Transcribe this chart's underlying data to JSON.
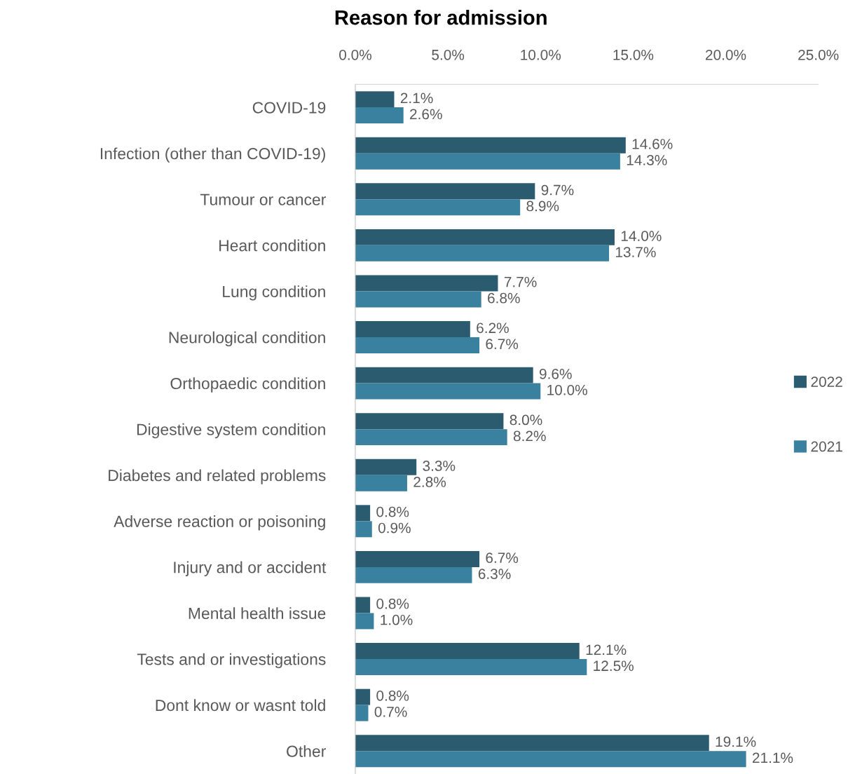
{
  "chart_data": {
    "type": "bar",
    "orientation": "horizontal",
    "title": "Reason for admission",
    "categories": [
      "COVID-19",
      "Infection (other than COVID-19)",
      "Tumour or cancer",
      "Heart condition",
      "Lung condition",
      "Neurological condition",
      "Orthopaedic condition",
      "Digestive system condition",
      "Diabetes and related problems",
      "Adverse reaction or poisoning",
      "Injury and or accident",
      "Mental health issue",
      "Tests and or investigations",
      "Dont know or wasnt told",
      "Other"
    ],
    "series": [
      {
        "name": "2022",
        "color": "#2b5b6f",
        "values": [
          2.1,
          14.6,
          9.7,
          14.0,
          7.7,
          6.2,
          9.6,
          8.0,
          3.3,
          0.8,
          6.7,
          0.8,
          12.1,
          0.8,
          19.1
        ],
        "value_labels": [
          "2.1%",
          "14.6%",
          "9.7%",
          "14.0%",
          "7.7%",
          "6.2%",
          "9.6%",
          "8.0%",
          "3.3%",
          "0.8%",
          "6.7%",
          "0.8%",
          "12.1%",
          "0.8%",
          "19.1%"
        ]
      },
      {
        "name": "2021",
        "color": "#3a81a0",
        "values": [
          2.6,
          14.3,
          8.9,
          13.7,
          6.8,
          6.7,
          10.0,
          8.2,
          2.8,
          0.9,
          6.3,
          1.0,
          12.5,
          0.7,
          21.1
        ],
        "value_labels": [
          "2.6%",
          "14.3%",
          "8.9%",
          "13.7%",
          "6.8%",
          "6.7%",
          "10.0%",
          "8.2%",
          "2.8%",
          "0.9%",
          "6.3%",
          "1.0%",
          "12.5%",
          "0.7%",
          "21.1%"
        ]
      }
    ],
    "xlim": [
      0,
      25
    ],
    "xticks": [
      {
        "value": 0,
        "label": "0.0%"
      },
      {
        "value": 5,
        "label": "5.0%"
      },
      {
        "value": 10,
        "label": "10.0%"
      },
      {
        "value": 15,
        "label": "15.0%"
      },
      {
        "value": 20,
        "label": "20.0%"
      },
      {
        "value": 25,
        "label": "25.0%"
      }
    ],
    "grid": false,
    "legend": "right"
  }
}
